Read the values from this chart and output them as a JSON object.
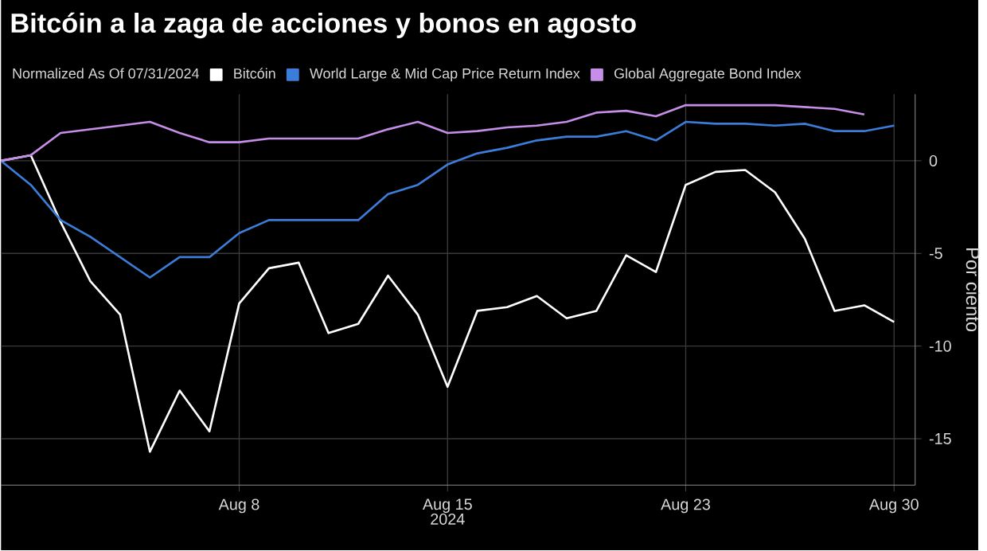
{
  "chart_data": {
    "type": "line",
    "title": "Bitcóin a la zaga de acciones y bonos en agosto",
    "legend_title": "Normalized As Of 07/31/2024",
    "ylabel": "Por ciento",
    "xlabel": "2024",
    "x": [
      "2024-07-31",
      "2024-08-01",
      "2024-08-02",
      "2024-08-03",
      "2024-08-04",
      "2024-08-05",
      "2024-08-06",
      "2024-08-07",
      "2024-08-08",
      "2024-08-09",
      "2024-08-10",
      "2024-08-11",
      "2024-08-12",
      "2024-08-13",
      "2024-08-14",
      "2024-08-15",
      "2024-08-16",
      "2024-08-17",
      "2024-08-18",
      "2024-08-19",
      "2024-08-20",
      "2024-08-21",
      "2024-08-22",
      "2024-08-23",
      "2024-08-24",
      "2024-08-25",
      "2024-08-26",
      "2024-08-27",
      "2024-08-28",
      "2024-08-29",
      "2024-08-30"
    ],
    "series": [
      {
        "name": "Bitcóin",
        "color": "#ffffff",
        "values": [
          0,
          0.3,
          -3.3,
          -6.5,
          -8.3,
          -15.7,
          -12.4,
          -14.6,
          -7.7,
          -5.8,
          -5.5,
          -9.3,
          -8.8,
          -6.2,
          -8.3,
          -12.2,
          -8.1,
          -7.9,
          -7.3,
          -8.5,
          -8.1,
          -5.1,
          -6.0,
          -1.3,
          -0.6,
          -0.5,
          -1.7,
          -4.2,
          -8.1,
          -7.8,
          -8.7
        ]
      },
      {
        "name": "World Large & Mid Cap Price Return Index",
        "color": "#3b7dd8",
        "values": [
          0,
          -1.3,
          -3.2,
          -4.1,
          -5.2,
          -6.3,
          -5.2,
          -5.2,
          -3.9,
          -3.2,
          -3.2,
          -3.2,
          -3.2,
          -1.8,
          -1.3,
          -0.2,
          0.4,
          0.7,
          1.1,
          1.3,
          1.3,
          1.6,
          1.1,
          2.1,
          2.0,
          2.0,
          1.9,
          2.0,
          1.6,
          1.6,
          1.9
        ]
      },
      {
        "name": "Global Aggregate Bond Index",
        "color": "#c68ee8",
        "values": [
          0,
          0.3,
          1.5,
          1.7,
          1.9,
          2.1,
          1.5,
          1.0,
          1.0,
          1.2,
          1.2,
          1.2,
          1.2,
          1.7,
          2.1,
          1.5,
          1.6,
          1.8,
          1.9,
          2.1,
          2.6,
          2.7,
          2.4,
          3.0,
          3.0,
          3.0,
          3.0,
          2.9,
          2.8,
          2.5,
          null
        ]
      }
    ],
    "xlim": [
      "2024-07-31",
      "2024-08-30T17:00"
    ],
    "xticks": [
      {
        "value": "2024-08-08",
        "label": "Aug 8"
      },
      {
        "value": "2024-08-15",
        "label": "Aug 15"
      },
      {
        "value": "2024-08-23",
        "label": "Aug 23"
      },
      {
        "value": "2024-08-30",
        "label": "Aug 30"
      }
    ],
    "ylim": [
      -17.5,
      3.6
    ],
    "yticks": [
      0,
      -5,
      -10,
      -15
    ],
    "grid": true,
    "legend": "top",
    "line_style": "solid",
    "marker": "none"
  }
}
